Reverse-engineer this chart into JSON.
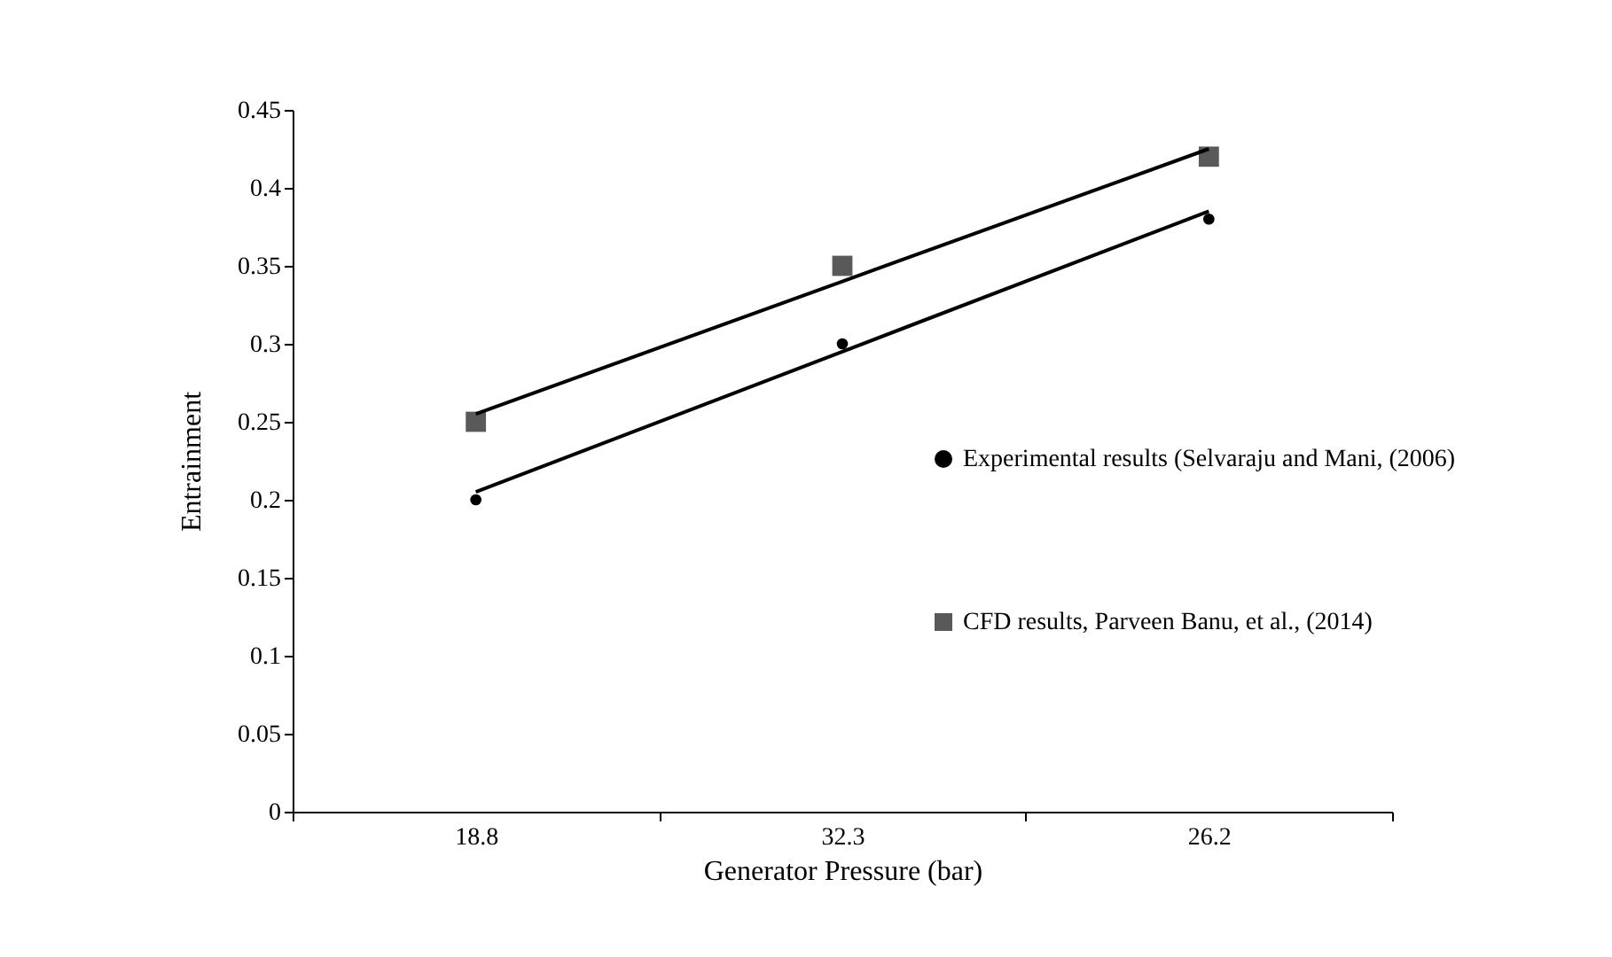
{
  "chart_data": {
    "type": "scatter",
    "xlabel": "Generator Pressure (bar)",
    "ylabel": "Entrainment",
    "categories": [
      "18.8",
      "32.3",
      "26.2"
    ],
    "ylim": [
      0,
      0.45
    ],
    "yticks": [
      0,
      0.05,
      0.1,
      0.15,
      0.2,
      0.25,
      0.3,
      0.35,
      0.4,
      0.45
    ],
    "grid": false,
    "legend": "right",
    "series": [
      {
        "name": "Experimental results (Selvaraju and Mani,  (2006)",
        "color": "#000000",
        "marker": "circle",
        "values": [
          0.2,
          0.3,
          0.38
        ]
      },
      {
        "name": "CFD results, Parveen Banu, et al., (2014)",
        "color": "#595959",
        "marker": "square",
        "values": [
          0.25,
          0.35,
          0.42
        ]
      },
      {
        "type": "line",
        "color": "#000000",
        "values": [
          0.205,
          0.295,
          0.385
        ]
      },
      {
        "type": "line",
        "color": "#000000",
        "values": [
          0.255,
          0.34,
          0.425
        ]
      }
    ]
  }
}
